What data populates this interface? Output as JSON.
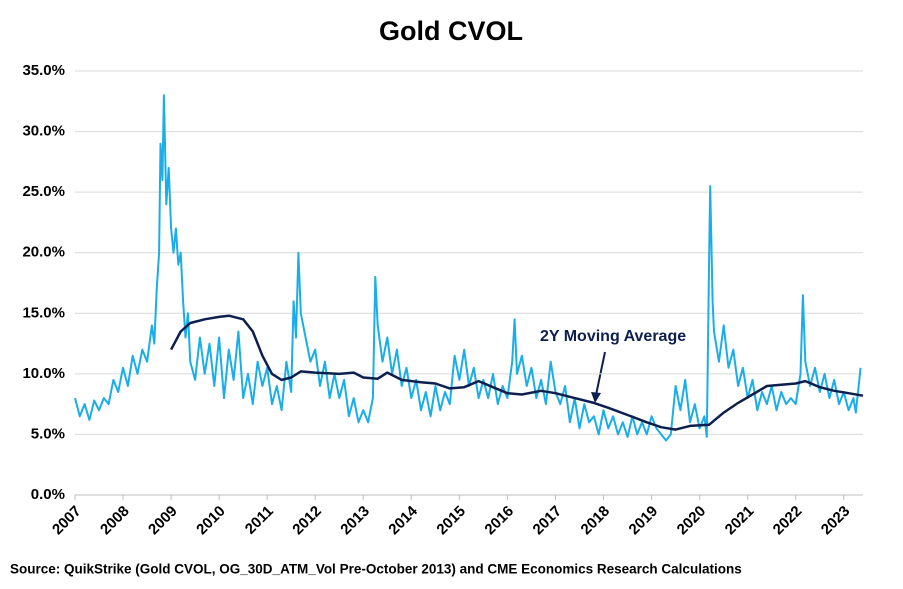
{
  "chart_data": {
    "type": "line",
    "title": "Gold CVOL",
    "source": "Source: QuikStrike (Gold CVOL, OG_30D_ATM_Vol Pre-October 2013) and CME Economics Research Calculations",
    "annotation": "2Y Moving Average",
    "xlim": [
      2007,
      2023.4
    ],
    "xticks": [
      2007,
      2008,
      2009,
      2010,
      2011,
      2012,
      2013,
      2014,
      2015,
      2016,
      2017,
      2018,
      2019,
      2020,
      2021,
      2022,
      2023
    ],
    "ylim": [
      0,
      35
    ],
    "yticks": [
      {
        "value": 0,
        "label": "0.0%"
      },
      {
        "value": 5,
        "label": "5.0%"
      },
      {
        "value": 10,
        "label": "10.0%"
      },
      {
        "value": 15,
        "label": "15.0%"
      },
      {
        "value": 20,
        "label": "20.0%"
      },
      {
        "value": 25,
        "label": "25.0%"
      },
      {
        "value": 30,
        "label": "30.0%"
      },
      {
        "value": 35,
        "label": "35.0%"
      }
    ],
    "grid": true,
    "series": [
      {
        "color": "#1aaee8",
        "x": [
          2007.0,
          2007.1,
          2007.2,
          2007.3,
          2007.4,
          2007.5,
          2007.6,
          2007.7,
          2007.8,
          2007.9,
          2008.0,
          2008.1,
          2008.2,
          2008.3,
          2008.4,
          2008.5,
          2008.6,
          2008.65,
          2008.7,
          2008.75,
          2008.78,
          2008.82,
          2008.85,
          2008.9,
          2008.95,
          2009.0,
          2009.05,
          2009.1,
          2009.15,
          2009.2,
          2009.25,
          2009.3,
          2009.35,
          2009.4,
          2009.5,
          2009.6,
          2009.7,
          2009.8,
          2009.9,
          2010.0,
          2010.1,
          2010.2,
          2010.3,
          2010.4,
          2010.5,
          2010.6,
          2010.7,
          2010.8,
          2010.9,
          2011.0,
          2011.1,
          2011.2,
          2011.3,
          2011.4,
          2011.5,
          2011.55,
          2011.6,
          2011.65,
          2011.7,
          2011.8,
          2011.9,
          2012.0,
          2012.1,
          2012.2,
          2012.3,
          2012.4,
          2012.5,
          2012.6,
          2012.7,
          2012.8,
          2012.9,
          2013.0,
          2013.1,
          2013.2,
          2013.25,
          2013.3,
          2013.4,
          2013.5,
          2013.6,
          2013.7,
          2013.8,
          2013.9,
          2014.0,
          2014.1,
          2014.2,
          2014.3,
          2014.4,
          2014.5,
          2014.6,
          2014.7,
          2014.8,
          2014.9,
          2015.0,
          2015.1,
          2015.2,
          2015.3,
          2015.4,
          2015.5,
          2015.6,
          2015.7,
          2015.8,
          2015.9,
          2016.0,
          2016.1,
          2016.15,
          2016.2,
          2016.3,
          2016.4,
          2016.5,
          2016.6,
          2016.7,
          2016.8,
          2016.9,
          2017.0,
          2017.1,
          2017.2,
          2017.3,
          2017.4,
          2017.5,
          2017.6,
          2017.7,
          2017.8,
          2017.9,
          2018.0,
          2018.1,
          2018.2,
          2018.3,
          2018.4,
          2018.5,
          2018.6,
          2018.7,
          2018.8,
          2018.9,
          2019.0,
          2019.1,
          2019.2,
          2019.3,
          2019.4,
          2019.5,
          2019.6,
          2019.7,
          2019.8,
          2019.9,
          2020.0,
          2020.1,
          2020.15,
          2020.2,
          2020.22,
          2020.27,
          2020.3,
          2020.4,
          2020.5,
          2020.6,
          2020.7,
          2020.8,
          2020.9,
          2021.0,
          2021.1,
          2021.2,
          2021.3,
          2021.4,
          2021.5,
          2021.6,
          2021.7,
          2021.8,
          2021.9,
          2022.0,
          2022.1,
          2022.15,
          2022.2,
          2022.3,
          2022.4,
          2022.5,
          2022.6,
          2022.7,
          2022.8,
          2022.9,
          2023.0,
          2023.1,
          2023.2,
          2023.25,
          2023.35
        ],
        "values": [
          8.0,
          6.5,
          7.5,
          6.2,
          7.8,
          7.0,
          8.0,
          7.5,
          9.5,
          8.5,
          10.5,
          9.0,
          11.5,
          10.0,
          12.0,
          11.0,
          14.0,
          12.5,
          17.0,
          20.0,
          29.0,
          26.0,
          33.0,
          24.0,
          27.0,
          22.0,
          20.0,
          22.0,
          19.0,
          20.0,
          16.0,
          13.0,
          15.0,
          11.0,
          9.5,
          13.0,
          10.0,
          12.5,
          9.0,
          13.0,
          8.0,
          12.0,
          9.5,
          13.5,
          8.0,
          10.0,
          7.5,
          11.0,
          9.0,
          10.5,
          7.5,
          9.0,
          7.0,
          11.0,
          8.5,
          16.0,
          13.0,
          20.0,
          15.0,
          13.0,
          11.0,
          12.0,
          9.0,
          11.0,
          8.0,
          10.0,
          8.0,
          9.5,
          6.5,
          8.0,
          6.0,
          7.0,
          6.0,
          8.0,
          18.0,
          14.0,
          11.0,
          13.0,
          10.0,
          12.0,
          9.0,
          10.5,
          8.0,
          9.5,
          7.0,
          8.5,
          6.5,
          9.0,
          7.0,
          8.5,
          7.5,
          11.5,
          9.5,
          12.0,
          9.0,
          10.5,
          8.0,
          9.5,
          8.0,
          10.0,
          7.5,
          9.0,
          8.0,
          11.0,
          14.5,
          10.0,
          11.5,
          9.0,
          10.5,
          8.0,
          9.5,
          7.5,
          11.0,
          8.5,
          7.5,
          9.0,
          6.0,
          8.0,
          5.5,
          7.5,
          6.0,
          6.5,
          5.0,
          7.0,
          5.5,
          6.5,
          5.0,
          6.0,
          4.8,
          6.5,
          5.0,
          6.0,
          5.0,
          6.5,
          5.5,
          5.0,
          4.5,
          5.0,
          9.0,
          7.0,
          9.5,
          6.0,
          7.5,
          5.5,
          6.5,
          4.8,
          20.0,
          25.5,
          16.0,
          13.5,
          11.0,
          14.0,
          10.5,
          12.0,
          9.0,
          10.5,
          8.0,
          9.5,
          7.0,
          8.5,
          7.5,
          9.0,
          7.0,
          8.5,
          7.5,
          8.0,
          7.5,
          10.0,
          16.5,
          11.0,
          9.0,
          10.5,
          8.5,
          10.0,
          8.0,
          9.5,
          7.5,
          8.5,
          7.0,
          8.0,
          6.8,
          10.5
        ]
      },
      {
        "color": "#0d1f4f",
        "x": [
          2009.0,
          2009.2,
          2009.4,
          2009.7,
          2010.0,
          2010.2,
          2010.5,
          2010.7,
          2010.9,
          2011.1,
          2011.3,
          2011.5,
          2011.7,
          2012.0,
          2012.5,
          2012.8,
          2013.0,
          2013.3,
          2013.5,
          2013.8,
          2014.2,
          2014.5,
          2014.8,
          2015.1,
          2015.4,
          2015.7,
          2016.0,
          2016.3,
          2016.7,
          2017.0,
          2017.4,
          2017.8,
          2018.1,
          2018.5,
          2018.9,
          2019.2,
          2019.5,
          2019.8,
          2020.2,
          2020.5,
          2020.8,
          2021.1,
          2021.4,
          2021.7,
          2022.0,
          2022.2,
          2022.5,
          2022.8,
          2023.1,
          2023.4
        ],
        "values": [
          12.0,
          13.5,
          14.2,
          14.5,
          14.7,
          14.8,
          14.5,
          13.5,
          11.5,
          10.0,
          9.5,
          9.7,
          10.2,
          10.1,
          10.0,
          10.1,
          9.7,
          9.6,
          10.1,
          9.5,
          9.3,
          9.2,
          8.8,
          8.9,
          9.4,
          8.9,
          8.4,
          8.3,
          8.6,
          8.4,
          8.0,
          7.6,
          7.2,
          6.6,
          6.0,
          5.6,
          5.4,
          5.7,
          5.8,
          6.8,
          7.6,
          8.3,
          9.0,
          9.1,
          9.2,
          9.4,
          8.9,
          8.6,
          8.4,
          8.2
        ]
      }
    ]
  }
}
